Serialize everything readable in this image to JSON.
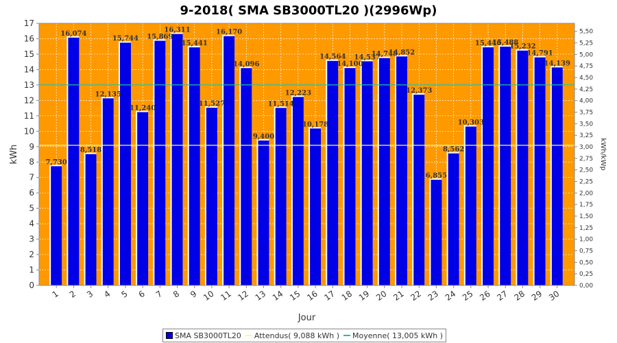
{
  "chart_data": {
    "type": "bar",
    "title": "9-2018( SMA SB3000TL20 )(2996Wp)",
    "xlabel": "Jour",
    "ylabel": "kWh",
    "ylabel_right": "kWh/kWp",
    "ylim": [
      0,
      17
    ],
    "ylim_right": [
      0,
      5.674
    ],
    "y_ticks": [
      "0",
      "1",
      "2",
      "3",
      "4",
      "5",
      "6",
      "7",
      "8",
      "9",
      "10",
      "11",
      "12",
      "13",
      "14",
      "15",
      "16",
      "17"
    ],
    "y_right_ticks": [
      "0,00",
      "0,25",
      "0,50",
      "0,75",
      "1,00",
      "1,25",
      "1,50",
      "1,75",
      "2,00",
      "2,25",
      "2,50",
      "2,75",
      "3,00",
      "3,25",
      "3,50",
      "3,75",
      "4,00",
      "4,25",
      "4,50",
      "4,75",
      "5,00",
      "5,25",
      "5,50"
    ],
    "categories": [
      "1",
      "2",
      "3",
      "4",
      "5",
      "6",
      "7",
      "8",
      "9",
      "10",
      "11",
      "12",
      "13",
      "14",
      "15",
      "16",
      "17",
      "18",
      "19",
      "20",
      "21",
      "22",
      "23",
      "24",
      "25",
      "26",
      "27",
      "28",
      "29",
      "30"
    ],
    "series": [
      {
        "name": "SMA SB3000TL20",
        "color": "#0000e6",
        "values": [
          7.73,
          16.074,
          8.518,
          12.135,
          15.744,
          11.24,
          15.869,
          16.311,
          15.441,
          11.527,
          16.17,
          14.096,
          9.4,
          11.514,
          12.223,
          10.178,
          14.564,
          14.1,
          14.537,
          14.748,
          14.852,
          12.373,
          6.855,
          8.562,
          10.303,
          15.446,
          15.488,
          15.232,
          14.791,
          14.139
        ],
        "labels": [
          "7,730",
          "16,074",
          "8,518",
          "12,135",
          "15,744",
          "11,240",
          "15,869",
          "16,311",
          "15,441",
          "11,527",
          "16,170",
          "14,096",
          "9,400",
          "11,514",
          "12,223",
          "10,178",
          "14,564",
          "14,100",
          "14,537",
          "14,748",
          "14,852",
          "12,373",
          "6,855",
          "8,562",
          "10,303",
          "15,446",
          "15,488",
          "15,232",
          "14,791",
          "14,139"
        ]
      }
    ],
    "reference_lines": [
      {
        "name": "Attendus",
        "value": 9.088,
        "color": "#ffff66"
      },
      {
        "name": "Moyenne",
        "value": 13.005,
        "color": "#20c0a0"
      }
    ],
    "grid": true,
    "legend_position": "bottom"
  },
  "colors": {
    "plot_background": "#ff9900",
    "bar": "#0000e6"
  },
  "legend": {
    "items": [
      {
        "label": "SMA SB3000TL20",
        "color": "#0000e6",
        "kind": "box"
      },
      {
        "label": "Attendus( 9,088 kWh )",
        "color": "#ffff66",
        "kind": "line"
      },
      {
        "label": "Moyenne( 13,005 kWh )",
        "color": "#20c0a0",
        "kind": "line"
      }
    ]
  }
}
